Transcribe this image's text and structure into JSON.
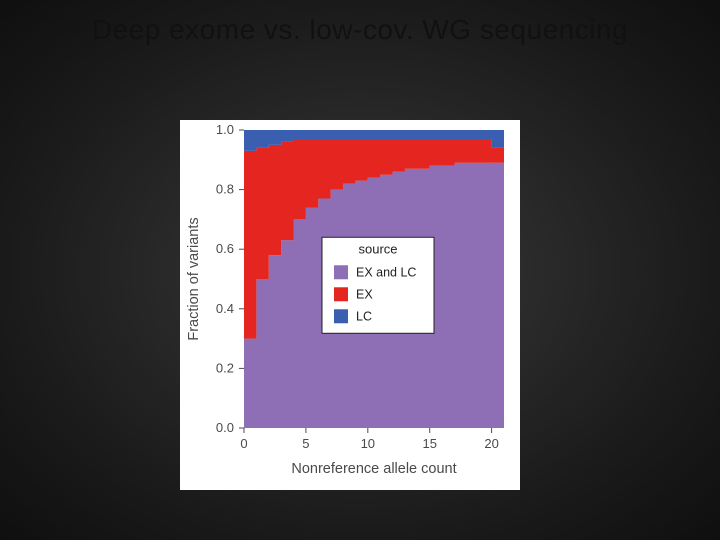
{
  "slide": {
    "title": "Deep exome vs. low-cov. WG sequencing",
    "background_inner": "#3a3a3a",
    "background_outer": "#0f0f0f",
    "title_color": "#111111",
    "title_fontsize": 28
  },
  "chart": {
    "type": "stacked-area",
    "xlabel": "Nonreference allele count",
    "ylabel": "Fraction of variants",
    "label_fontsize": 14.5,
    "tick_fontsize": 13,
    "xlim": [
      0,
      21
    ],
    "ylim": [
      0.0,
      1.0
    ],
    "xticks": [
      0,
      5,
      10,
      15,
      20
    ],
    "yticks": [
      0.0,
      0.2,
      0.4,
      0.6,
      0.8,
      1.0
    ],
    "xtick_labels": [
      "0",
      "5",
      "10",
      "15",
      "20"
    ],
    "ytick_labels": [
      "0.0",
      "0.2",
      "0.4",
      "0.6",
      "0.8",
      "1.0"
    ],
    "panel_bg": "#e6e6e6",
    "outer_bg": "#ffffff",
    "grid_color": "#ffffff",
    "grid_width": 1.2,
    "x": [
      1,
      2,
      3,
      4,
      5,
      6,
      7,
      8,
      9,
      10,
      11,
      12,
      13,
      14,
      15,
      16,
      17,
      18,
      19,
      20,
      21
    ],
    "ex_and_lc": [
      0.3,
      0.5,
      0.58,
      0.63,
      0.7,
      0.74,
      0.77,
      0.8,
      0.82,
      0.83,
      0.84,
      0.85,
      0.86,
      0.87,
      0.87,
      0.88,
      0.88,
      0.89,
      0.89,
      0.89,
      0.89
    ],
    "ex": [
      0.63,
      0.44,
      0.37,
      0.33,
      0.27,
      0.23,
      0.2,
      0.17,
      0.15,
      0.14,
      0.13,
      0.12,
      0.11,
      0.1,
      0.1,
      0.09,
      0.09,
      0.08,
      0.08,
      0.08,
      0.05
    ],
    "lc": [
      0.07,
      0.06,
      0.05,
      0.04,
      0.03,
      0.03,
      0.03,
      0.03,
      0.03,
      0.03,
      0.03,
      0.03,
      0.03,
      0.03,
      0.03,
      0.03,
      0.03,
      0.03,
      0.03,
      0.03,
      0.06
    ],
    "colors": {
      "ex_and_lc": "#8e6eb5",
      "ex": "#e52620",
      "lc": "#3a5fb0"
    },
    "legend": {
      "title": "source",
      "items": [
        {
          "label": "EX and LC",
          "key": "ex_and_lc"
        },
        {
          "label": "EX",
          "key": "ex"
        },
        {
          "label": "LC",
          "key": "lc"
        }
      ],
      "box_stroke": "#222222",
      "box_fill": "#ffffff",
      "swatch_size": 14
    }
  }
}
